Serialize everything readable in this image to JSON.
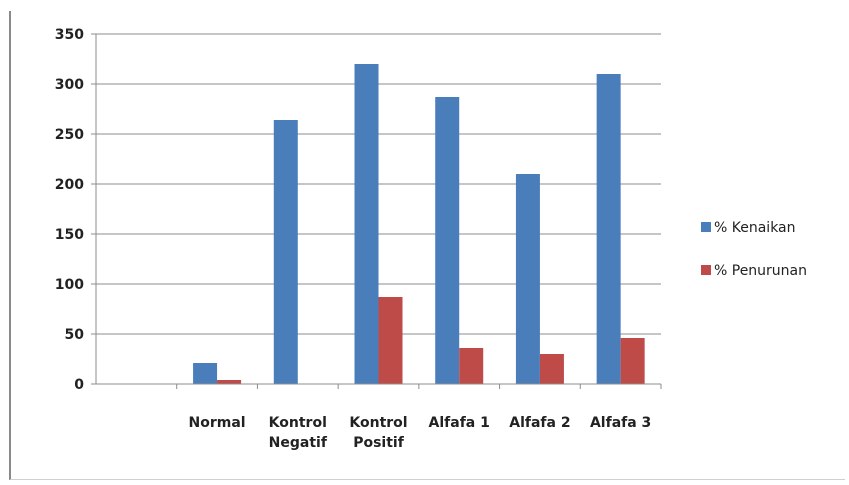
{
  "chart_data": {
    "type": "bar",
    "categories": [
      "",
      "Normal",
      "Kontrol Negatif",
      "Kontrol Positif",
      "Alfafa 1",
      "Alfafa 2",
      "Alfafa 3"
    ],
    "category_lines": [
      [
        ""
      ],
      [
        "Normal"
      ],
      [
        "Kontrol",
        "Negatif"
      ],
      [
        "Kontrol",
        "Positif"
      ],
      [
        "Alfafa 1"
      ],
      [
        "Alfafa 2"
      ],
      [
        "Alfafa 3"
      ]
    ],
    "series": [
      {
        "name": "% Kenaikan",
        "color": "#4a7ebb",
        "values": [
          0,
          21,
          264,
          320,
          287,
          210,
          310
        ]
      },
      {
        "name": "% Penurunan",
        "color": "#be4b48",
        "values": [
          0,
          4,
          0,
          87,
          36,
          30,
          46
        ]
      }
    ],
    "ylim": [
      0,
      350
    ],
    "yticks": [
      0,
      50,
      100,
      150,
      200,
      250,
      300,
      350
    ],
    "grid": true,
    "legend_position": "right"
  }
}
